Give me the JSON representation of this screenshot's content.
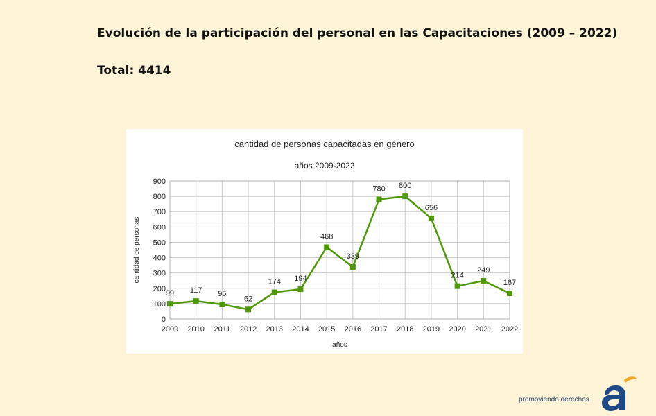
{
  "slide": {
    "title": "Evolución de la participación del personal en las Capacitaciones (2009 – 2022)",
    "total": "Total: 4414"
  },
  "footer": {
    "brand_text": "promoviendo derechos"
  },
  "colors": {
    "background": "#fdf3d6",
    "line": "#4e9a06",
    "marker": "#4e9a06",
    "logo_blue": "#1f4a8a",
    "logo_orange": "#f5a623"
  },
  "chart_data": {
    "type": "line",
    "title": "cantidad de personas capacitadas en género",
    "subtitle": "años 2009-2022",
    "xlabel": "años",
    "ylabel": "cantidad de personas",
    "categories": [
      "2009",
      "2010",
      "2011",
      "2012",
      "2013",
      "2014",
      "2015",
      "2016",
      "2017",
      "2018",
      "2019",
      "2020",
      "2021",
      "2022"
    ],
    "values": [
      99,
      117,
      95,
      62,
      174,
      194,
      468,
      339,
      780,
      800,
      656,
      214,
      249,
      167
    ],
    "data_labels": [
      "99",
      "117",
      "95",
      "62",
      "174",
      "194",
      "468",
      "339",
      "780",
      "800",
      "656",
      "214",
      "249",
      "167"
    ],
    "ylim": [
      0,
      900
    ],
    "yticks": [
      0,
      100,
      200,
      300,
      400,
      500,
      600,
      700,
      800,
      900
    ],
    "grid": true,
    "legend": "none"
  }
}
